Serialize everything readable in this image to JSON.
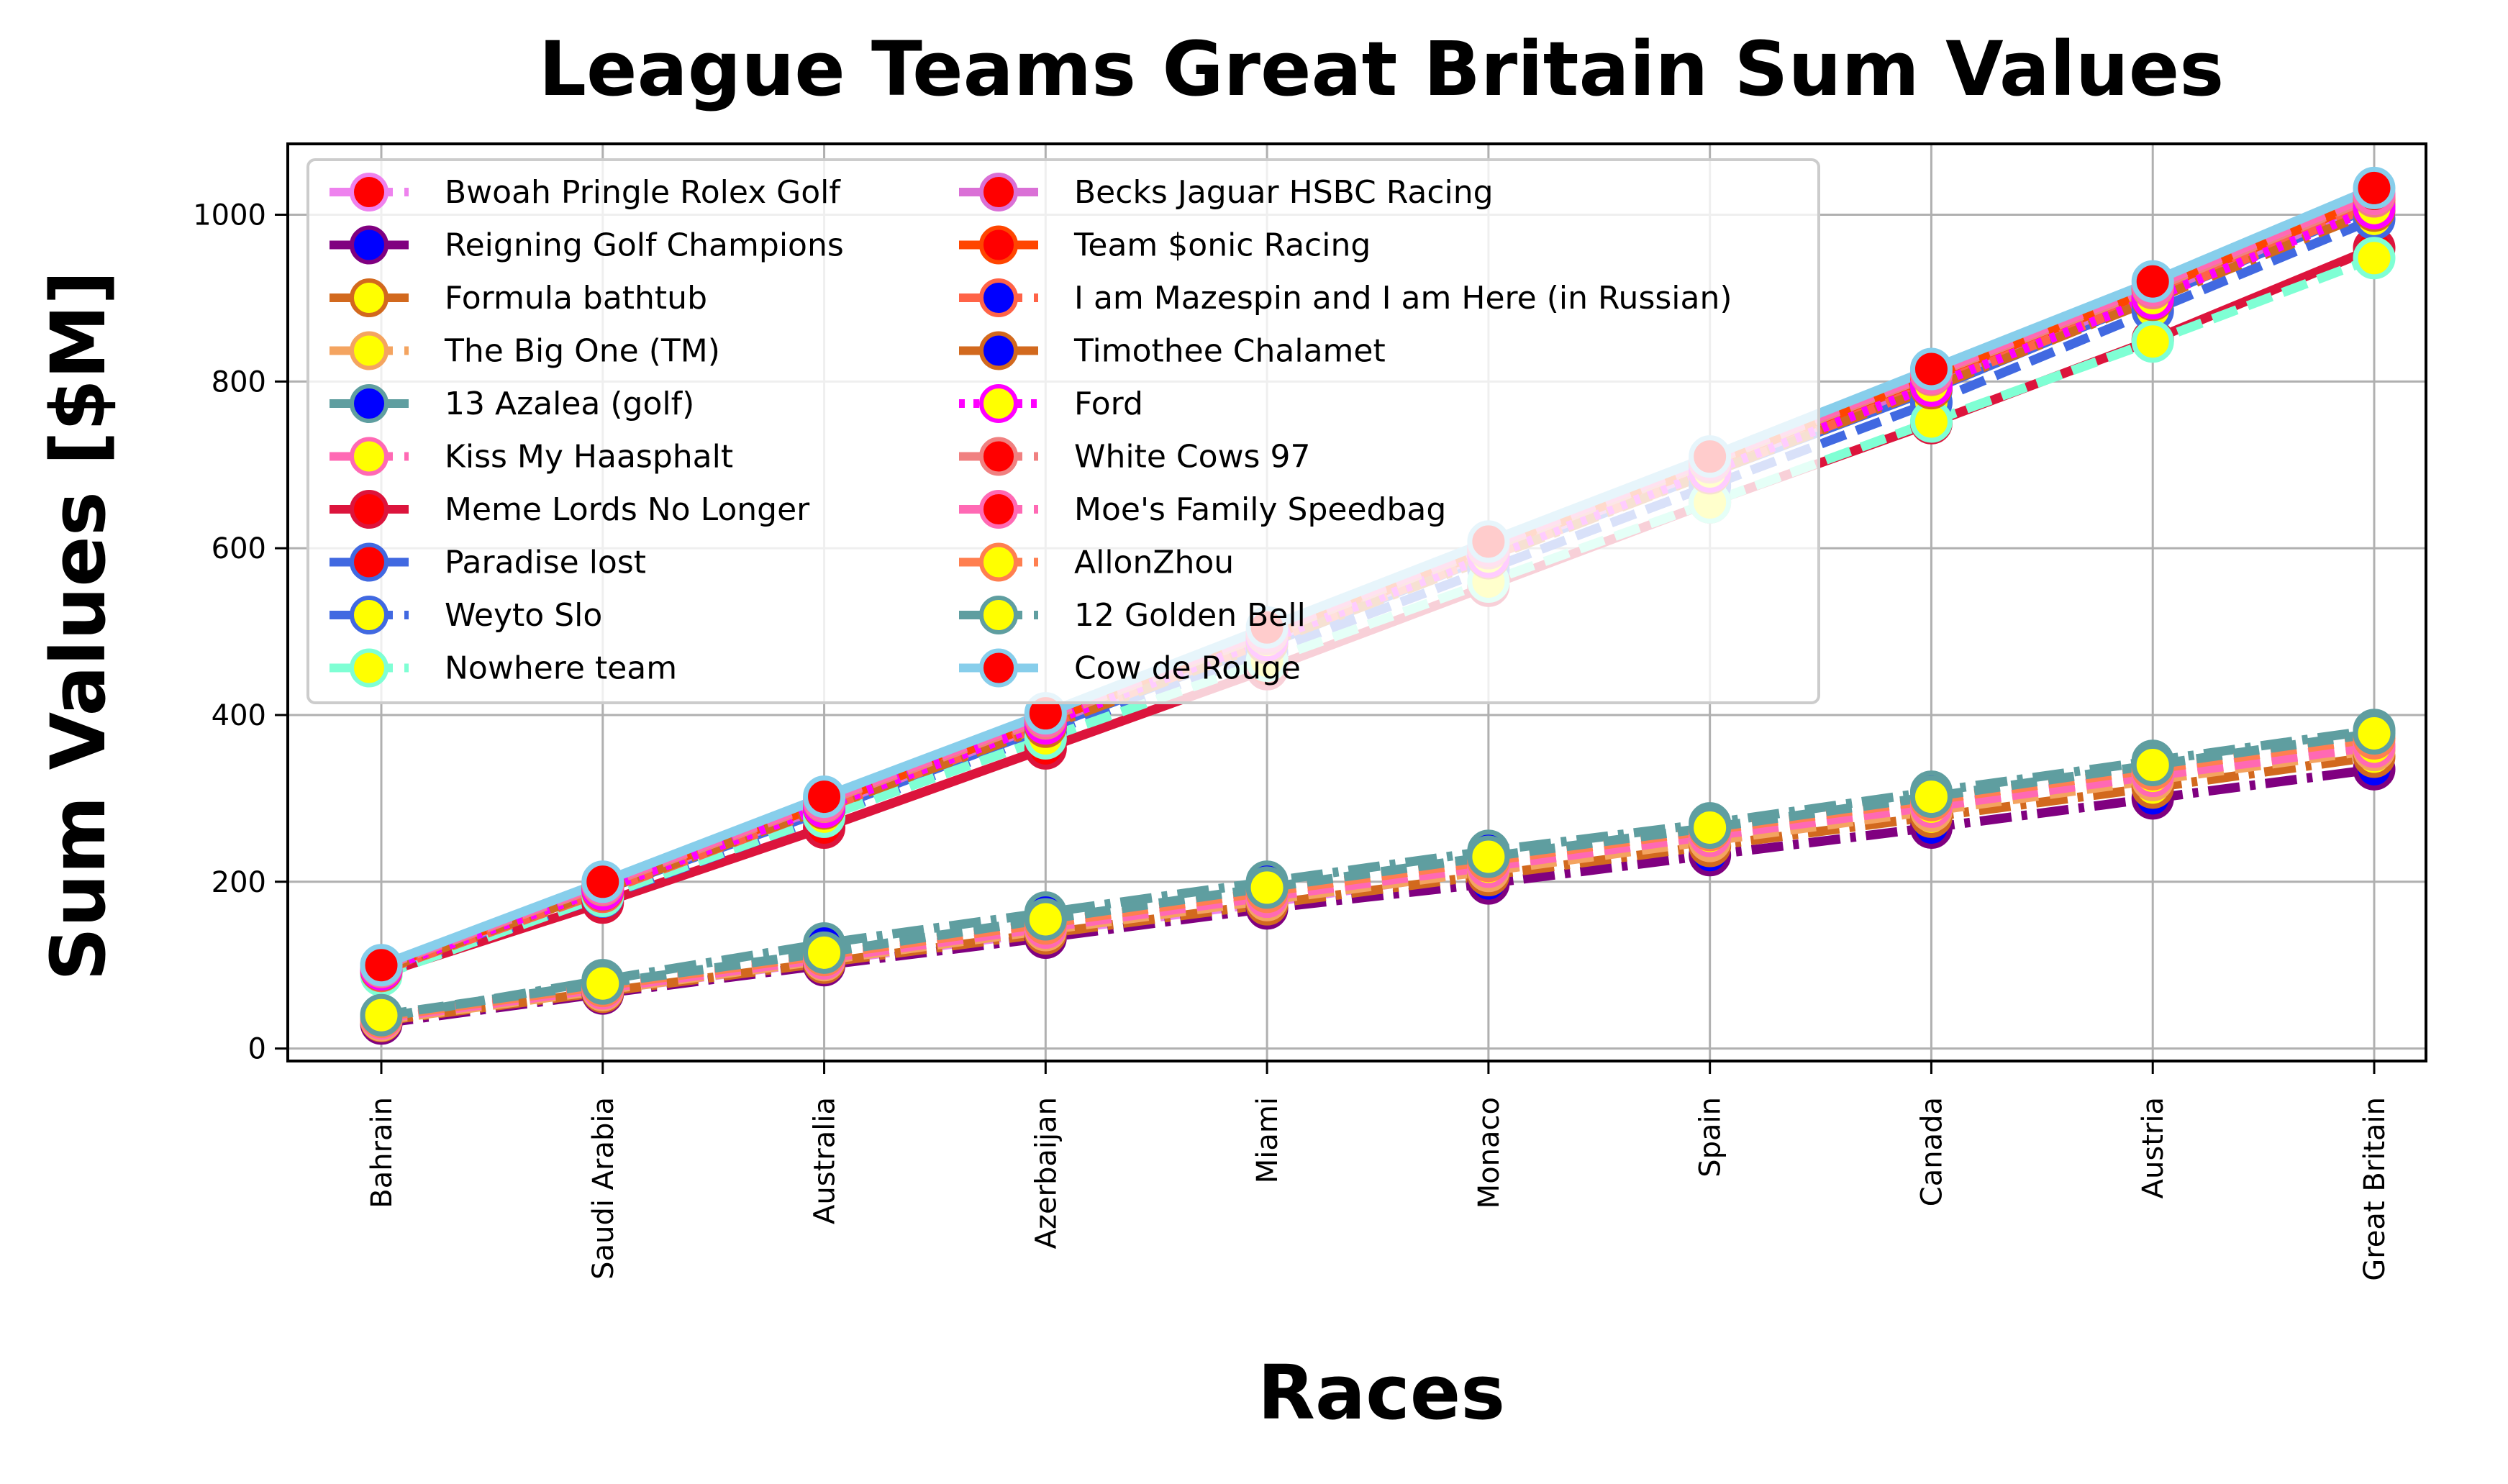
{
  "chart_data": {
    "type": "line",
    "title": "League Teams Great Britain Sum Values",
    "xlabel": "Races",
    "ylabel": "Sum Values [$M]",
    "categories": [
      "Bahrain",
      "Saudi Arabia",
      "Australia",
      "Azerbaijan",
      "Miami",
      "Monaco",
      "Spain",
      "Canada",
      "Austria",
      "Great Britain"
    ],
    "ylim": [
      -15,
      1085
    ],
    "yticks": [
      0,
      200,
      400,
      600,
      800,
      1000
    ],
    "grid": true,
    "legend_position": "top-left",
    "legend_columns": 2,
    "series": [
      {
        "name": "Bwoah Pringle Rolex Golf",
        "color": "#ee82ee",
        "dash": "dashed",
        "marker_face": "#ff0000",
        "values": [
          35,
          70,
          105,
          140,
          175,
          215,
          250,
          290,
          330,
          365
        ]
      },
      {
        "name": "Reigning Golf Champions",
        "color": "#800080",
        "dash": "dashdot",
        "marker_face": "#0000ff",
        "values": [
          30,
          66,
          100,
          133,
          168,
          198,
          232,
          265,
          300,
          335
        ]
      },
      {
        "name": "Formula bathtub",
        "color": "#d2691e",
        "dash": "dashdot",
        "marker_face": "#ffff00",
        "values": [
          33,
          68,
          103,
          138,
          173,
          208,
          243,
          278,
          313,
          350
        ]
      },
      {
        "name": "The Big One (TM)",
        "color": "#f4a460",
        "dash": "dashed",
        "marker_face": "#ffff00",
        "values": [
          34,
          70,
          106,
          142,
          178,
          213,
          249,
          285,
          322,
          358
        ]
      },
      {
        "name": "13 Azalea (golf)",
        "color": "#5f9ea0",
        "dash": "dashdot",
        "marker_face": "#0000ff",
        "values": [
          37,
          82,
          126,
          163,
          200,
          237,
          270,
          308,
          345,
          382
        ]
      },
      {
        "name": "Kiss My Haasphalt",
        "color": "#ff69b4",
        "dash": "dashed",
        "marker_face": "#ffff00",
        "values": [
          36,
          72,
          108,
          145,
          182,
          218,
          255,
          290,
          327,
          362
        ]
      },
      {
        "name": "Meme Lords No Longer",
        "color": "#dc143c",
        "dash": "solid",
        "marker_face": "#ff0000",
        "values": [
          90,
          175,
          265,
          360,
          455,
          555,
          655,
          750,
          850,
          960
        ]
      },
      {
        "name": "Paradise lost",
        "color": "#4169e1",
        "dash": "solid",
        "marker_face": "#ff0000",
        "values": [
          95,
          190,
          285,
          385,
          485,
          590,
          690,
          790,
          900,
          1010
        ]
      },
      {
        "name": "Weyto Slo",
        "color": "#4169e1",
        "dash": "dashed",
        "marker_face": "#ffff00",
        "values": [
          92,
          182,
          278,
          378,
          475,
          575,
          675,
          775,
          885,
          995
        ]
      },
      {
        "name": "Nowhere team",
        "color": "#7fffd4",
        "dash": "dashed",
        "marker_face": "#ffff00",
        "values": [
          88,
          183,
          278,
          372,
          465,
          560,
          655,
          752,
          848,
          948
        ]
      },
      {
        "name": "Becks Jaguar HSBC Racing",
        "color": "#da70d6",
        "dash": "solid",
        "marker_face": "#ff0000",
        "values": [
          96,
          192,
          290,
          390,
          490,
          595,
          695,
          800,
          905,
          1015
        ]
      },
      {
        "name": "Team $onic Racing",
        "color": "#ff4500",
        "dash": "solid",
        "marker_face": "#ff0000",
        "values": [
          97,
          194,
          293,
          393,
          493,
          598,
          700,
          805,
          910,
          1020
        ]
      },
      {
        "name": "I am Mazespin and I am Here (in Russian)",
        "color": "#ff6347",
        "dash": "dashed",
        "marker_face": "#0000ff",
        "values": [
          93,
          188,
          288,
          388,
          488,
          590,
          690,
          795,
          900,
          1012
        ]
      },
      {
        "name": "Timothee Chalamet",
        "color": "#d2691e",
        "dash": "dashdot",
        "marker_face": "#0000ff",
        "values": [
          94,
          190,
          288,
          386,
          486,
          588,
          690,
          792,
          898,
          1005
        ]
      },
      {
        "name": "Ford",
        "color": "#ff00ff",
        "dash": "dotted",
        "marker_face": "#ffff00",
        "values": [
          95,
          191,
          290,
          390,
          490,
          590,
          692,
          795,
          900,
          1008
        ]
      },
      {
        "name": "White Cows 97",
        "color": "#f08080",
        "dash": "dashed",
        "marker_face": "#ff0000",
        "values": [
          98,
          196,
          296,
          396,
          497,
          600,
          703,
          808,
          912,
          1022
        ]
      },
      {
        "name": "Moe's Family Speedbag",
        "color": "#ff69b4",
        "dash": "dashed",
        "marker_face": "#ff0000",
        "values": [
          99,
          198,
          298,
          399,
          500,
          603,
          706,
          810,
          915,
          1025
        ]
      },
      {
        "name": "AllonZhou",
        "color": "#ff7f50",
        "dash": "dashed",
        "marker_face": "#ffff00",
        "values": [
          38,
          75,
          112,
          150,
          188,
          225,
          262,
          298,
          335,
          372
        ]
      },
      {
        "name": "12 Golden Bell",
        "color": "#5f9ea0",
        "dash": "dashed",
        "marker_face": "#ffff00",
        "values": [
          40,
          78,
          115,
          155,
          193,
          230,
          265,
          302,
          340,
          378
        ]
      },
      {
        "name": "Cow de Rouge",
        "color": "#87ceeb",
        "dash": "solid",
        "marker_face": "#ff0000",
        "values": [
          100,
          200,
          302,
          402,
          505,
          608,
          710,
          815,
          920,
          1032
        ]
      }
    ]
  }
}
